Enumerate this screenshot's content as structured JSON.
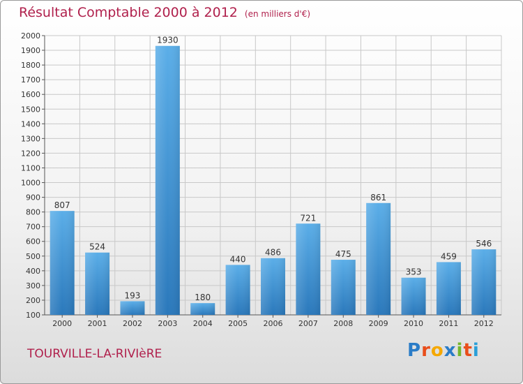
{
  "header": {
    "title": "Résultat Comptable 2000 à 2012",
    "unit": "(en milliers d'€)"
  },
  "footer": {
    "town": "TOURVILLE-LA-RIVIèRE",
    "brand": "Proxiti"
  },
  "colors": {
    "title": "#b0204c",
    "bar_top": "#5baee8",
    "bar_bottom": "#2a78bb",
    "grid": "#c8c8c8"
  },
  "chart_data": {
    "type": "bar",
    "title": "Résultat Comptable 2000 à 2012",
    "ylabel": "en milliers d'€",
    "xlabel": "",
    "grid": true,
    "categories": [
      "2000",
      "2001",
      "2002",
      "2003",
      "2004",
      "2005",
      "2006",
      "2007",
      "2008",
      "2009",
      "2010",
      "2011",
      "2012"
    ],
    "values": [
      807,
      524,
      193,
      1930,
      180,
      440,
      486,
      721,
      475,
      861,
      353,
      459,
      546
    ],
    "ylim": [
      100,
      2000
    ],
    "yticks": [
      100,
      200,
      300,
      400,
      500,
      600,
      700,
      800,
      900,
      1000,
      1100,
      1200,
      1300,
      1400,
      1500,
      1600,
      1700,
      1800,
      1900,
      2000
    ]
  }
}
